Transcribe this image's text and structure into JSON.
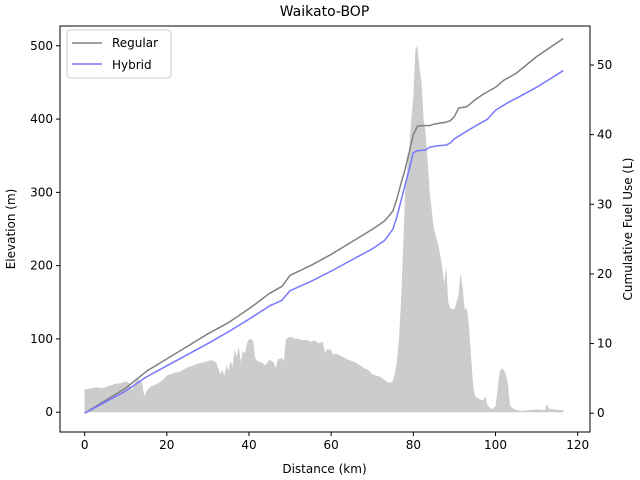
{
  "chart_data": {
    "type": "line",
    "title": "Waikato-BOP",
    "xlabel": "Distance (km)",
    "ylabel": "Elevation (m)",
    "y2label": "Cumulative Fuel Use (L)",
    "xlim": [
      -6,
      123
    ],
    "ylim": [
      -27,
      527
    ],
    "y2lim": [
      -2.7,
      55.6
    ],
    "xticks": [
      0,
      20,
      40,
      60,
      80,
      100,
      120
    ],
    "yticks": [
      0,
      100,
      200,
      300,
      400,
      500
    ],
    "y2ticks": [
      0,
      10,
      20,
      30,
      40,
      50
    ],
    "grid": false,
    "legend_position": "upper-left",
    "elevation": {
      "color": "#cccccc",
      "points": [
        [
          0,
          31
        ],
        [
          1,
          32
        ],
        [
          2,
          33
        ],
        [
          3,
          34
        ],
        [
          4,
          33
        ],
        [
          5,
          34
        ],
        [
          6,
          36
        ],
        [
          7,
          38
        ],
        [
          8,
          39
        ],
        [
          9,
          40
        ],
        [
          10,
          42
        ],
        [
          10.8,
          40
        ],
        [
          11.5,
          30
        ],
        [
          12.2,
          40
        ],
        [
          13,
          45
        ],
        [
          14,
          40
        ],
        [
          14.5,
          22
        ],
        [
          15,
          28
        ],
        [
          15.5,
          32
        ],
        [
          16,
          35
        ],
        [
          17,
          37
        ],
        [
          18,
          40
        ],
        [
          19,
          44
        ],
        [
          20,
          50
        ],
        [
          21,
          52
        ],
        [
          22,
          54
        ],
        [
          23,
          55
        ],
        [
          24,
          58
        ],
        [
          25,
          61
        ],
        [
          26,
          63
        ],
        [
          27,
          65
        ],
        [
          28,
          67
        ],
        [
          29,
          68
        ],
        [
          30,
          70
        ],
        [
          31,
          71
        ],
        [
          32,
          68
        ],
        [
          32.5,
          60
        ],
        [
          33,
          52
        ],
        [
          33.5,
          58
        ],
        [
          34,
          50
        ],
        [
          34.5,
          64
        ],
        [
          35,
          57
        ],
        [
          35.5,
          70
        ],
        [
          36,
          62
        ],
        [
          36.5,
          86
        ],
        [
          37,
          75
        ],
        [
          37.5,
          90
        ],
        [
          38,
          68
        ],
        [
          38.5,
          84
        ],
        [
          39,
          80
        ],
        [
          39.5,
          94
        ],
        [
          40,
          100
        ],
        [
          41,
          98
        ],
        [
          41.5,
          74
        ],
        [
          42,
          70
        ],
        [
          43,
          68
        ],
        [
          44,
          64
        ],
        [
          45,
          72
        ],
        [
          46,
          68
        ],
        [
          46.5,
          60
        ],
        [
          47,
          72
        ],
        [
          48,
          74
        ],
        [
          48.5,
          70
        ],
        [
          49,
          100
        ],
        [
          50,
          103
        ],
        [
          51,
          101
        ],
        [
          52,
          100
        ],
        [
          53,
          98
        ],
        [
          54,
          99
        ],
        [
          55,
          96
        ],
        [
          56,
          98
        ],
        [
          57,
          94
        ],
        [
          58,
          96
        ],
        [
          58.5,
          80
        ],
        [
          59,
          86
        ],
        [
          60,
          85
        ],
        [
          60.5,
          78
        ],
        [
          61,
          80
        ],
        [
          62,
          78
        ],
        [
          63,
          75
        ],
        [
          64,
          72
        ],
        [
          65,
          70
        ],
        [
          66,
          68
        ],
        [
          67,
          64
        ],
        [
          68,
          60
        ],
        [
          69,
          58
        ],
        [
          70,
          52
        ],
        [
          71,
          50
        ],
        [
          72,
          48
        ],
        [
          73,
          44
        ],
        [
          74,
          40
        ],
        [
          75,
          42
        ],
        [
          75.5,
          52
        ],
        [
          76,
          70
        ],
        [
          76.5,
          100
        ],
        [
          77,
          150
        ],
        [
          77.5,
          220
        ],
        [
          78,
          300
        ],
        [
          78.5,
          330
        ],
        [
          79,
          360
        ],
        [
          79.5,
          400
        ],
        [
          80,
          430
        ],
        [
          80.5,
          495
        ],
        [
          81,
          500
        ],
        [
          81.5,
          470
        ],
        [
          82,
          450
        ],
        [
          82.5,
          400
        ],
        [
          83,
          380
        ],
        [
          83.5,
          340
        ],
        [
          84,
          300
        ],
        [
          85,
          250
        ],
        [
          86,
          230
        ],
        [
          87,
          200
        ],
        [
          87.5,
          175
        ],
        [
          88,
          200
        ],
        [
          88.5,
          150
        ],
        [
          89,
          142
        ],
        [
          90,
          140
        ],
        [
          91,
          160
        ],
        [
          91.5,
          190
        ],
        [
          92,
          170
        ],
        [
          92.5,
          140
        ],
        [
          93,
          142
        ],
        [
          93.5,
          120
        ],
        [
          94,
          80
        ],
        [
          94.5,
          40
        ],
        [
          95,
          22
        ],
        [
          96,
          18
        ],
        [
          97,
          16
        ],
        [
          97.5,
          22
        ],
        [
          98,
          10
        ],
        [
          99,
          4
        ],
        [
          100,
          8
        ],
        [
          100.5,
          30
        ],
        [
          101,
          55
        ],
        [
          101.5,
          60
        ],
        [
          102,
          58
        ],
        [
          102.5,
          52
        ],
        [
          103,
          40
        ],
        [
          103.5,
          10
        ],
        [
          104,
          6
        ],
        [
          105,
          3
        ],
        [
          106,
          2
        ],
        [
          107,
          2
        ],
        [
          108,
          3
        ],
        [
          109,
          3
        ],
        [
          110,
          4
        ],
        [
          111,
          3
        ],
        [
          112,
          3
        ],
        [
          112.5,
          11
        ],
        [
          113,
          5
        ],
        [
          114,
          4
        ],
        [
          115,
          3
        ],
        [
          116,
          3
        ],
        [
          116.5,
          3
        ]
      ]
    },
    "series": [
      {
        "name": "Regular",
        "color": "#808080",
        "axis": "right",
        "points": [
          [
            0,
            0
          ],
          [
            5,
            1.8
          ],
          [
            10,
            3.6
          ],
          [
            15,
            6.0
          ],
          [
            20,
            7.8
          ],
          [
            25,
            9.6
          ],
          [
            30,
            11.4
          ],
          [
            35,
            13.0
          ],
          [
            40,
            15.0
          ],
          [
            45,
            17.2
          ],
          [
            48,
            18.2
          ],
          [
            50,
            19.8
          ],
          [
            55,
            21.2
          ],
          [
            60,
            22.8
          ],
          [
            65,
            24.6
          ],
          [
            70,
            26.4
          ],
          [
            73,
            27.6
          ],
          [
            75,
            29.0
          ],
          [
            76,
            30.8
          ],
          [
            77,
            33.0
          ],
          [
            78,
            35.0
          ],
          [
            79,
            37.5
          ],
          [
            80,
            40.0
          ],
          [
            81,
            41.2
          ],
          [
            82,
            41.3
          ],
          [
            84,
            41.3
          ],
          [
            85,
            41.5
          ],
          [
            86,
            41.6
          ],
          [
            88,
            41.8
          ],
          [
            89,
            42.0
          ],
          [
            90,
            42.6
          ],
          [
            91,
            43.8
          ],
          [
            93,
            44.0
          ],
          [
            95,
            45.0
          ],
          [
            97,
            45.8
          ],
          [
            100,
            46.8
          ],
          [
            102,
            47.8
          ],
          [
            105,
            48.8
          ],
          [
            110,
            51.2
          ],
          [
            113,
            52.4
          ],
          [
            116.5,
            53.8
          ]
        ]
      },
      {
        "name": "Hybrid",
        "color": "#7777ff",
        "axis": "right",
        "points": [
          [
            0,
            0
          ],
          [
            5,
            1.6
          ],
          [
            10,
            3.2
          ],
          [
            15,
            5.2
          ],
          [
            20,
            6.8
          ],
          [
            25,
            8.4
          ],
          [
            30,
            10.0
          ],
          [
            35,
            11.7
          ],
          [
            40,
            13.5
          ],
          [
            45,
            15.4
          ],
          [
            48,
            16.2
          ],
          [
            50,
            17.6
          ],
          [
            55,
            18.9
          ],
          [
            60,
            20.4
          ],
          [
            65,
            22.0
          ],
          [
            70,
            23.6
          ],
          [
            73,
            24.8
          ],
          [
            75,
            26.4
          ],
          [
            76,
            28.2
          ],
          [
            77,
            30.5
          ],
          [
            78,
            32.8
          ],
          [
            79,
            35.0
          ],
          [
            80,
            37.4
          ],
          [
            81,
            37.7
          ],
          [
            83,
            37.8
          ],
          [
            84,
            38.2
          ],
          [
            86,
            38.4
          ],
          [
            88,
            38.5
          ],
          [
            89,
            38.8
          ],
          [
            90,
            39.4
          ],
          [
            93,
            40.5
          ],
          [
            95,
            41.2
          ],
          [
            98,
            42.2
          ],
          [
            100,
            43.5
          ],
          [
            103,
            44.6
          ],
          [
            105,
            45.2
          ],
          [
            110,
            46.8
          ],
          [
            113,
            47.9
          ],
          [
            116.5,
            49.2
          ]
        ]
      }
    ]
  }
}
